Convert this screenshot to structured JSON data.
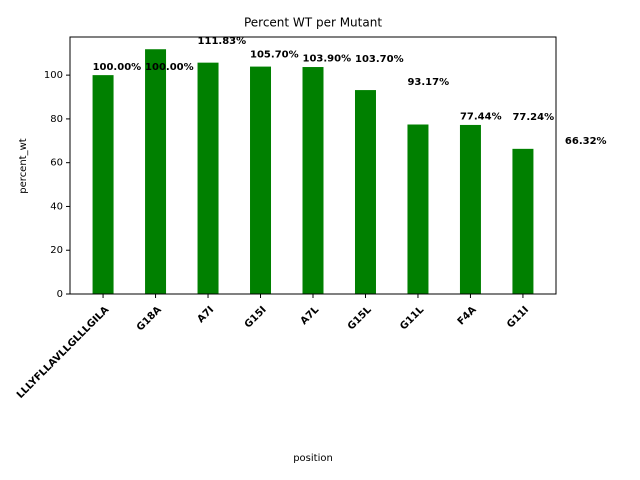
{
  "chart_data": {
    "type": "bar",
    "title": "Percent WT per Mutant",
    "x_label": "position",
    "y_label": "percent_wt",
    "categories": [
      "LLLYFLLAVLLGLLLGILA",
      "G18A",
      "A7I",
      "G15I",
      "A7L",
      "G15L",
      "G11L",
      "F4A",
      "G11I"
    ],
    "values": [
      100.0,
      111.83,
      105.7,
      103.9,
      103.7,
      93.17,
      77.44,
      77.24,
      66.32
    ],
    "value_labels": [
      "100.00%",
      "111.83%",
      "105.70%",
      "103.90%",
      "103.70%",
      "93.17%",
      "77.44%",
      "77.24%",
      "66.32%"
    ],
    "color": "#008000",
    "ylim": [
      0,
      117.42
    ],
    "yticks": [
      0,
      20,
      40,
      60,
      80,
      100
    ]
  }
}
